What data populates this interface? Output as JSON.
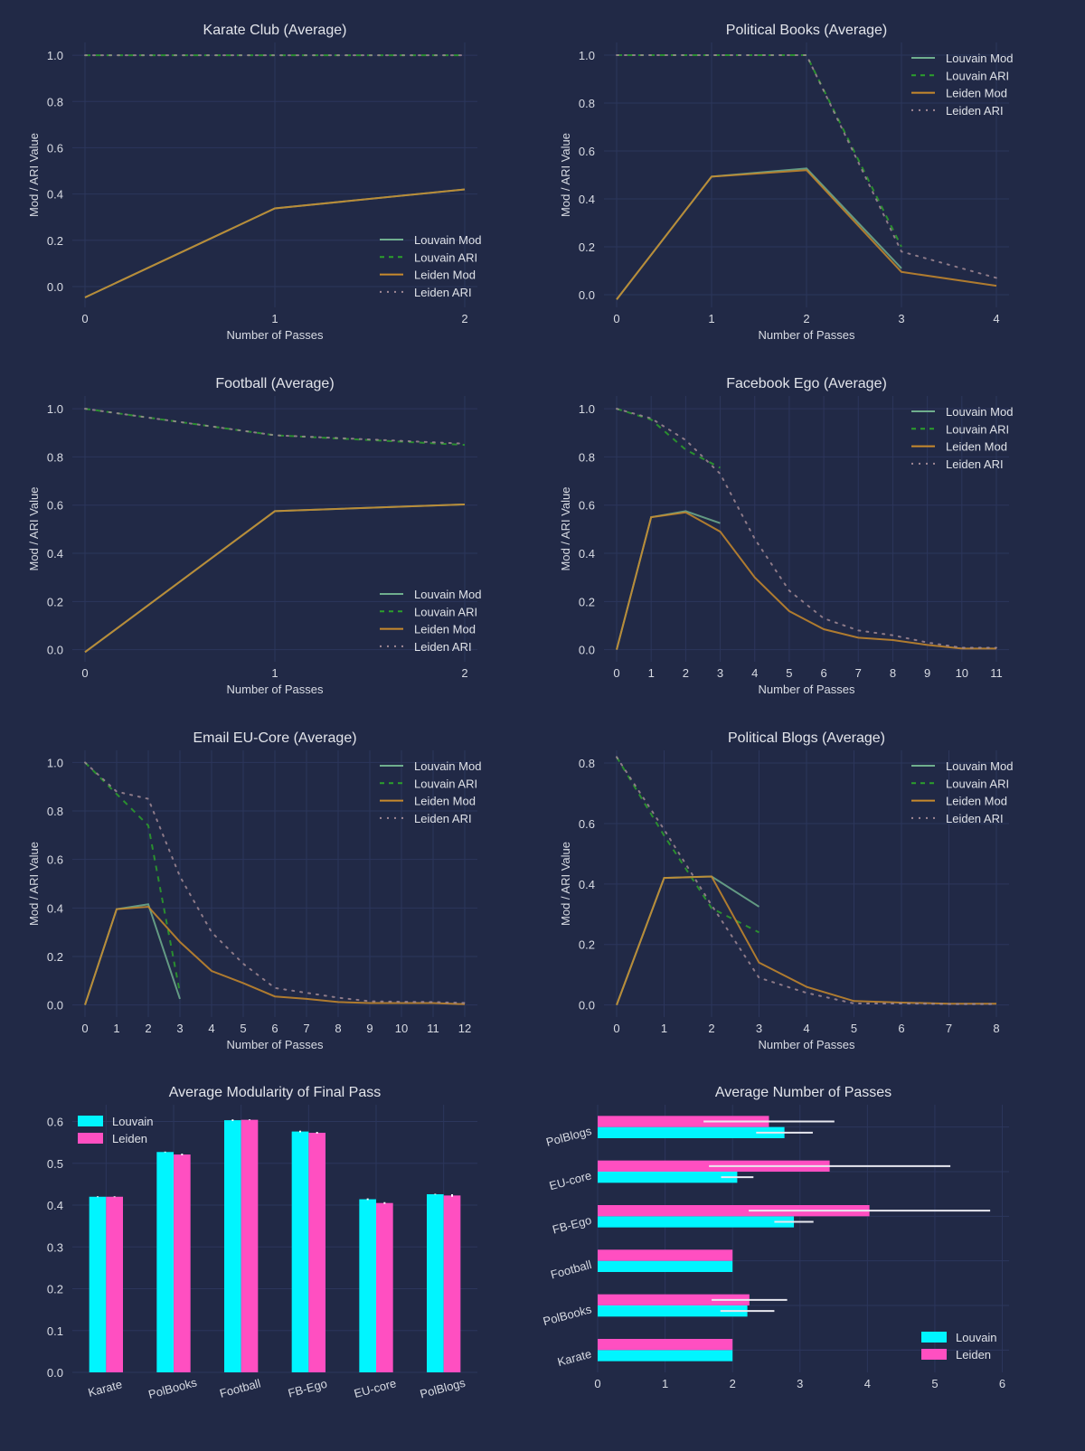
{
  "theme": {
    "background": "#212946",
    "grid": "#2c365c",
    "text": "#e2e4ea"
  },
  "chart_data": [
    {
      "type": "line",
      "title": "Karate Club (Average)",
      "xlabel": "Number of Passes",
      "ylabel": "Mod / ARI Value",
      "xlim": [
        0,
        2
      ],
      "ylim": [
        -0.09,
        1.055
      ],
      "xticks": [
        "0",
        "1",
        "2"
      ],
      "yticks": [
        "0.0",
        "0.2",
        "0.4",
        "0.6",
        "0.8",
        "1.0"
      ],
      "legend": "bottom-right",
      "grid": true,
      "series": [
        {
          "name": "Louvain Mod",
          "color": "#6fae8e",
          "dash": "solid",
          "x": [
            0,
            1,
            2
          ],
          "y": [
            -0.047,
            0.338,
            0.42
          ]
        },
        {
          "name": "Louvain ARI",
          "color": "#2ca02c",
          "dash": "dash",
          "x": [
            0,
            1,
            2
          ],
          "y": [
            1,
            1,
            1
          ]
        },
        {
          "name": "Leiden Mod",
          "color": "#c88a2c",
          "dash": "solid",
          "x": [
            0,
            1,
            2
          ],
          "y": [
            -0.047,
            0.338,
            0.42
          ]
        },
        {
          "name": "Leiden ARI",
          "color": "#a08894",
          "dash": "dot",
          "x": [
            0,
            1,
            2
          ],
          "y": [
            1,
            1,
            1
          ]
        }
      ]
    },
    {
      "type": "line",
      "title": "Political Books (Average)",
      "xlabel": "Number of Passes",
      "ylabel": "Mod / ARI Value",
      "xlim": [
        0,
        4
      ],
      "ylim": [
        -0.053,
        1.053
      ],
      "xticks": [
        "0",
        "1",
        "2",
        "3",
        "4"
      ],
      "yticks": [
        "0.0",
        "0.2",
        "0.4",
        "0.6",
        "0.8",
        "1.0"
      ],
      "legend": "top-right",
      "grid": true,
      "series": [
        {
          "name": "Louvain Mod",
          "color": "#6fae8e",
          "dash": "solid",
          "x": [
            0,
            1,
            2,
            3
          ],
          "y": [
            -0.02,
            0.493,
            0.527,
            0.11
          ]
        },
        {
          "name": "Louvain ARI",
          "color": "#2ca02c",
          "dash": "dash",
          "x": [
            0,
            1,
            2,
            3
          ],
          "y": [
            1,
            1,
            1,
            0.2
          ]
        },
        {
          "name": "Leiden Mod",
          "color": "#c88a2c",
          "dash": "solid",
          "x": [
            0,
            1,
            2,
            3,
            4
          ],
          "y": [
            -0.02,
            0.493,
            0.52,
            0.095,
            0.037
          ]
        },
        {
          "name": "Leiden ARI",
          "color": "#a08894",
          "dash": "dot",
          "x": [
            0,
            1,
            2,
            3,
            4
          ],
          "y": [
            1,
            1,
            1,
            0.18,
            0.07
          ]
        }
      ]
    },
    {
      "type": "line",
      "title": "Football (Average)",
      "xlabel": "Number of Passes",
      "ylabel": "Mod / ARI Value",
      "xlim": [
        0,
        2
      ],
      "ylim": [
        -0.05,
        1.053
      ],
      "xticks": [
        "0",
        "1",
        "2"
      ],
      "yticks": [
        "0.0",
        "0.2",
        "0.4",
        "0.6",
        "0.8",
        "1.0"
      ],
      "legend": "bottom-right",
      "grid": true,
      "series": [
        {
          "name": "Louvain Mod",
          "color": "#6fae8e",
          "dash": "solid",
          "x": [
            0,
            1,
            2
          ],
          "y": [
            -0.01,
            0.575,
            0.603
          ]
        },
        {
          "name": "Louvain ARI",
          "color": "#2ca02c",
          "dash": "dash",
          "x": [
            0,
            1,
            2
          ],
          "y": [
            1,
            0.89,
            0.85
          ]
        },
        {
          "name": "Leiden Mod",
          "color": "#c88a2c",
          "dash": "solid",
          "x": [
            0,
            1,
            2
          ],
          "y": [
            -0.01,
            0.575,
            0.603
          ]
        },
        {
          "name": "Leiden ARI",
          "color": "#a08894",
          "dash": "dot",
          "x": [
            0,
            1,
            2
          ],
          "y": [
            1,
            0.89,
            0.855
          ]
        }
      ]
    },
    {
      "type": "line",
      "title": "Facebook Ego (Average)",
      "xlabel": "Number of Passes",
      "ylabel": "Mod / ARI Value",
      "xlim": [
        0,
        11
      ],
      "ylim": [
        -0.05,
        1.053
      ],
      "xticks": [
        "0",
        "1",
        "2",
        "3",
        "4",
        "5",
        "6",
        "7",
        "8",
        "9",
        "10",
        "11"
      ],
      "yticks": [
        "0.0",
        "0.2",
        "0.4",
        "0.6",
        "0.8",
        "1.0"
      ],
      "legend": "top-right",
      "grid": true,
      "series": [
        {
          "name": "Louvain Mod",
          "color": "#6fae8e",
          "dash": "solid",
          "x": [
            0,
            1,
            2,
            3
          ],
          "y": [
            0,
            0.55,
            0.575,
            0.525
          ]
        },
        {
          "name": "Louvain ARI",
          "color": "#2ca02c",
          "dash": "dash",
          "x": [
            0,
            1,
            2,
            3
          ],
          "y": [
            1,
            0.955,
            0.83,
            0.755
          ]
        },
        {
          "name": "Leiden Mod",
          "color": "#c88a2c",
          "dash": "solid",
          "x": [
            0,
            1,
            2,
            3,
            4,
            5,
            6,
            7,
            8,
            9,
            10,
            11
          ],
          "y": [
            0,
            0.55,
            0.57,
            0.49,
            0.3,
            0.16,
            0.085,
            0.05,
            0.04,
            0.02,
            0.005,
            0.005
          ]
        },
        {
          "name": "Leiden ARI",
          "color": "#a08894",
          "dash": "dot",
          "x": [
            0,
            1,
            2,
            3,
            4,
            5,
            6,
            7,
            8,
            9,
            10,
            11
          ],
          "y": [
            1,
            0.96,
            0.87,
            0.73,
            0.46,
            0.245,
            0.13,
            0.08,
            0.06,
            0.03,
            0.008,
            0.008
          ]
        }
      ]
    },
    {
      "type": "line",
      "title": "Email EU-Core (Average)",
      "xlabel": "Number of Passes",
      "ylabel": "Mod / ARI Value",
      "xlim": [
        0,
        12
      ],
      "ylim": [
        -0.05,
        1.05
      ],
      "xticks": [
        "0",
        "1",
        "2",
        "3",
        "4",
        "5",
        "6",
        "7",
        "8",
        "9",
        "10",
        "11",
        "12"
      ],
      "yticks": [
        "0.0",
        "0.2",
        "0.4",
        "0.6",
        "0.8",
        "1.0"
      ],
      "legend": "top-right",
      "grid": true,
      "series": [
        {
          "name": "Louvain Mod",
          "color": "#6fae8e",
          "dash": "solid",
          "x": [
            0,
            1,
            2,
            3
          ],
          "y": [
            0,
            0.395,
            0.415,
            0.025
          ]
        },
        {
          "name": "Louvain ARI",
          "color": "#2ca02c",
          "dash": "dash",
          "x": [
            0,
            1,
            2,
            3
          ],
          "y": [
            1,
            0.87,
            0.74,
            0.05
          ]
        },
        {
          "name": "Leiden Mod",
          "color": "#c88a2c",
          "dash": "solid",
          "x": [
            0,
            1,
            2,
            3,
            4,
            5,
            6,
            7,
            8,
            9,
            10,
            11,
            12
          ],
          "y": [
            0,
            0.395,
            0.405,
            0.26,
            0.14,
            0.09,
            0.035,
            0.025,
            0.012,
            0.008,
            0.008,
            0.008,
            0.003
          ]
        },
        {
          "name": "Leiden ARI",
          "color": "#a08894",
          "dash": "dot",
          "x": [
            0,
            1,
            2,
            3,
            4,
            5,
            6,
            7,
            8,
            9,
            10,
            11,
            12
          ],
          "y": [
            1,
            0.88,
            0.85,
            0.53,
            0.3,
            0.17,
            0.07,
            0.05,
            0.03,
            0.015,
            0.013,
            0.012,
            0.008
          ]
        }
      ]
    },
    {
      "type": "line",
      "title": "Political Blogs (Average)",
      "xlabel": "Number of Passes",
      "ylabel": "Mod / ARI Value",
      "xlim": [
        0,
        8
      ],
      "ylim": [
        -0.04,
        0.842
      ],
      "xticks": [
        "0",
        "1",
        "2",
        "3",
        "4",
        "5",
        "6",
        "7",
        "8"
      ],
      "yticks": [
        "0.0",
        "0.2",
        "0.4",
        "0.6",
        "0.8"
      ],
      "legend": "top-right",
      "grid": true,
      "series": [
        {
          "name": "Louvain Mod",
          "color": "#6fae8e",
          "dash": "solid",
          "x": [
            0,
            1,
            2,
            3
          ],
          "y": [
            0,
            0.42,
            0.425,
            0.325
          ]
        },
        {
          "name": "Louvain ARI",
          "color": "#2ca02c",
          "dash": "dash",
          "x": [
            0,
            1,
            2,
            3
          ],
          "y": [
            0.82,
            0.56,
            0.32,
            0.24
          ]
        },
        {
          "name": "Leiden Mod",
          "color": "#c88a2c",
          "dash": "solid",
          "x": [
            0,
            1,
            2,
            3,
            4,
            5,
            6,
            7,
            8
          ],
          "y": [
            0,
            0.42,
            0.425,
            0.14,
            0.06,
            0.013,
            0.008,
            0.004,
            0.004
          ]
        },
        {
          "name": "Leiden ARI",
          "color": "#a08894",
          "dash": "dot",
          "x": [
            0,
            1,
            2,
            3,
            4,
            5,
            6,
            7,
            8
          ],
          "y": [
            0.82,
            0.58,
            0.33,
            0.09,
            0.04,
            0.005,
            0.005,
            0.003,
            0.003
          ]
        }
      ]
    },
    {
      "type": "bar",
      "orientation": "v",
      "title": "Average Modularity of Final Pass",
      "categories": [
        "Karate",
        "PolBooks",
        "Football",
        "FB-Ego",
        "EU-core",
        "PolBlogs"
      ],
      "ylim": [
        0,
        0.64
      ],
      "yticks": [
        "0.0",
        "0.1",
        "0.2",
        "0.3",
        "0.4",
        "0.5",
        "0.6"
      ],
      "legend": "top-left",
      "grid": true,
      "series": [
        {
          "name": "Louvain",
          "color": "#00f5ff",
          "values": [
            0.42,
            0.527,
            0.603,
            0.576,
            0.414,
            0.426
          ],
          "error": [
            0.001,
            0.001,
            0.002,
            0.002,
            0.002,
            0.001
          ]
        },
        {
          "name": "Leiden",
          "color": "#ff4fc1",
          "values": [
            0.42,
            0.521,
            0.604,
            0.573,
            0.405,
            0.423
          ],
          "error": [
            0.001,
            0.002,
            0.001,
            0.002,
            0.002,
            0.003
          ]
        }
      ]
    },
    {
      "type": "bar",
      "orientation": "h",
      "title": "Average Number of Passes",
      "categories": [
        "Karate",
        "PolBooks",
        "Football",
        "FB-Ego",
        "EU-core",
        "PolBlogs"
      ],
      "xlim": [
        0,
        6.1
      ],
      "xticks": [
        "0",
        "1",
        "2",
        "3",
        "4",
        "5",
        "6"
      ],
      "legend": "bottom-right",
      "grid": true,
      "series": [
        {
          "name": "Louvain",
          "color": "#00f5ff",
          "values": [
            2,
            2.22,
            2,
            2.91,
            2.07,
            2.77
          ],
          "error": [
            0,
            0.4,
            0,
            0.29,
            0.24,
            0.42
          ]
        },
        {
          "name": "Leiden",
          "color": "#ff4fc1",
          "values": [
            2,
            2.25,
            2,
            4.03,
            3.44,
            2.54
          ],
          "error": [
            0,
            0.56,
            0,
            1.79,
            1.79,
            0.97
          ]
        }
      ]
    }
  ]
}
